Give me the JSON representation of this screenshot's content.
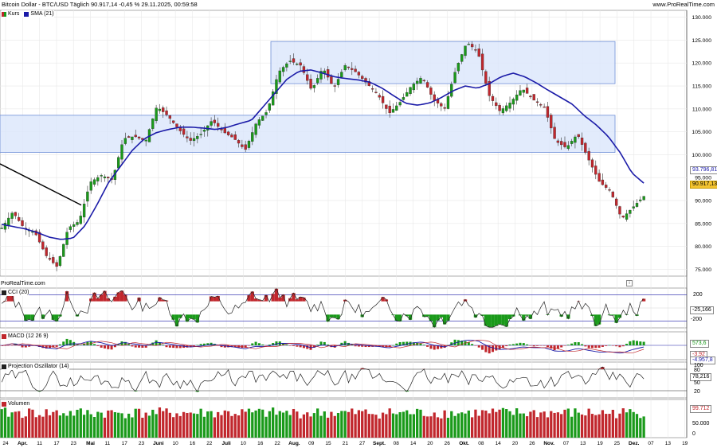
{
  "header": {
    "left": "Bitcoin Dollar - BTC/USD Täglich 90.917,14 -0,45 % 29.11.2025, 00:59:58",
    "right": "www.ProRealTime.com"
  },
  "legend_main": [
    {
      "label": "Kurs",
      "color": "#c1272d"
    },
    {
      "label": "SMA (21)",
      "color": "#1b1ba8"
    }
  ],
  "watermark": "ProRealTime.com",
  "panels": {
    "cci": {
      "label": "CCI (20)",
      "ticks": [
        "200",
        "-200"
      ],
      "value": "-25,166"
    },
    "macd": {
      "label": "MACD (12 26 9)",
      "values": [
        "573,6",
        "-3.92",
        "-4.957,8"
      ]
    },
    "proj": {
      "label": "Projection Oszillator (14)",
      "ticks": [
        "100",
        "80",
        "50",
        "20"
      ],
      "value": "78,216"
    },
    "vol": {
      "label": "Volumen",
      "ticks": [
        "50.000",
        "0"
      ],
      "value": "99.712"
    }
  },
  "price_labels": {
    "sma": "93.796,81",
    "price": "90.917,13"
  },
  "x_labels": [
    "24",
    "Apr.",
    "11",
    "17",
    "23",
    "Mai",
    "11",
    "17",
    "23",
    "Juni",
    "10",
    "16",
    "22",
    "Juli",
    "10",
    "16",
    "22",
    "Aug.",
    "09",
    "15",
    "21",
    "27",
    "Sept.",
    "08",
    "14",
    "20",
    "26",
    "Okt.",
    "08",
    "14",
    "20",
    "26",
    "Nov.",
    "07",
    "13",
    "19",
    "25",
    "Dez.",
    "07",
    "13",
    "19"
  ],
  "colors": {
    "up": "#1a9a1a",
    "down": "#c1272d",
    "sma": "#1b1ba8",
    "zone": "#dbe6fb",
    "zone_border": "#6f8ed6"
  },
  "chart_data": {
    "type": "candlestick",
    "title": "Bitcoin Dollar - BTC/USD Täglich",
    "y_ticks": [
      75000,
      80000,
      85000,
      90000,
      95000,
      100000,
      105000,
      110000,
      115000,
      120000,
      125000,
      130000
    ],
    "ylim": [
      73500,
      131500
    ],
    "series": [
      {
        "name": "Kurs",
        "anchors": [
          84000,
          87500,
          84000,
          83000,
          78000,
          75500,
          84000,
          85500,
          94000,
          95500,
          94500,
          103500,
          104000,
          103000,
          110500,
          108500,
          105500,
          103000,
          104500,
          107500,
          105000,
          103500,
          101000,
          107000,
          109500,
          118000,
          120500,
          119500,
          114000,
          119000,
          114500,
          119500,
          118000,
          115500,
          113000,
          109000,
          111500,
          115000,
          117000,
          112000,
          110000,
          118500,
          124500,
          122500,
          113000,
          109500,
          111500,
          114500,
          112000,
          110500,
          103000,
          101500,
          104500,
          99000,
          94000,
          92000,
          86000,
          88500,
          90917
        ]
      },
      {
        "name": "SMA (21)",
        "anchors": [
          84800,
          84300,
          83800,
          83000,
          82000,
          81500,
          81800,
          84500,
          89000,
          94000,
          97500,
          101000,
          103500,
          104800,
          105500,
          106000,
          106000,
          105800,
          105500,
          106000,
          106800,
          107500,
          110500,
          113500,
          116500,
          118200,
          118500,
          117800,
          117000,
          116600,
          116300,
          115800,
          114500,
          112800,
          111200,
          110800,
          111300,
          112500,
          114000,
          115000,
          114500,
          115500,
          117000,
          117800,
          117000,
          115600,
          114000,
          112500,
          111000,
          108500,
          106500,
          104000,
          100500,
          96000,
          93797
        ]
      }
    ],
    "zones": [
      [
        115500,
        124700
      ],
      [
        100500,
        108600
      ]
    ],
    "trendline": [
      [
        98000,
        89000
      ],
      [
        3000,
        81500
      ]
    ]
  }
}
